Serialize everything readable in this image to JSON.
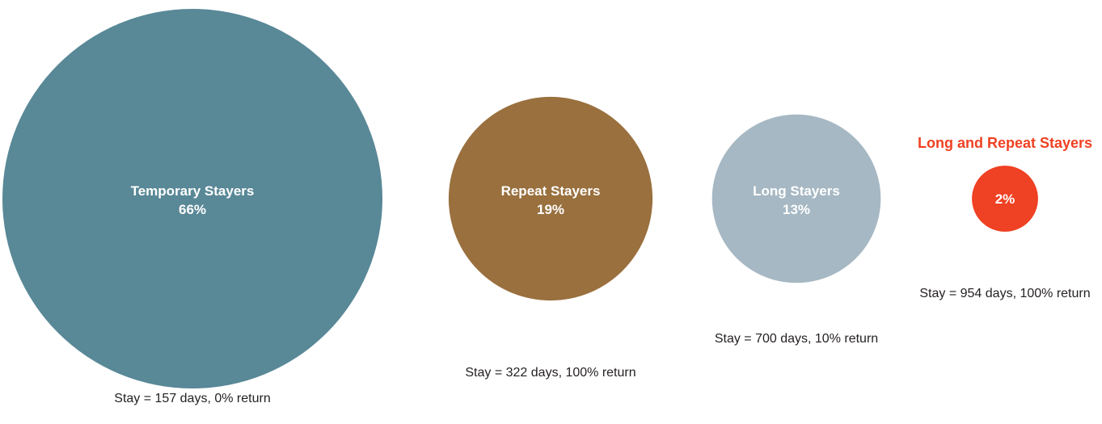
{
  "chart_data": {
    "type": "bubble",
    "series": [
      {
        "name": "Temporary Stayers",
        "share_percent": 66,
        "value_label": "66%",
        "stay_days": 157,
        "return_percent": 0,
        "caption": "Stay = 157 days, 0% return",
        "color": "#598897",
        "label_color": "#ffffff",
        "label_position": "inside"
      },
      {
        "name": "Repeat Stayers",
        "share_percent": 19,
        "value_label": "19%",
        "stay_days": 322,
        "return_percent": 100,
        "caption": "Stay = 322 days, 100% return",
        "color": "#99703e",
        "label_color": "#ffffff",
        "label_position": "inside"
      },
      {
        "name": "Long Stayers",
        "share_percent": 13,
        "value_label": "13%",
        "stay_days": 700,
        "return_percent": 10,
        "caption": "Stay = 700 days, 10% return",
        "color": "#a6b8c3",
        "label_color": "#ffffff",
        "label_position": "inside"
      },
      {
        "name": "Long and Repeat Stayers",
        "share_percent": 2,
        "value_label": "2%",
        "stay_days": 954,
        "return_percent": 100,
        "caption": "Stay = 954 days, 100% return",
        "color": "#ef4123",
        "label_color": "#ef4123",
        "label_position": "above"
      }
    ]
  }
}
